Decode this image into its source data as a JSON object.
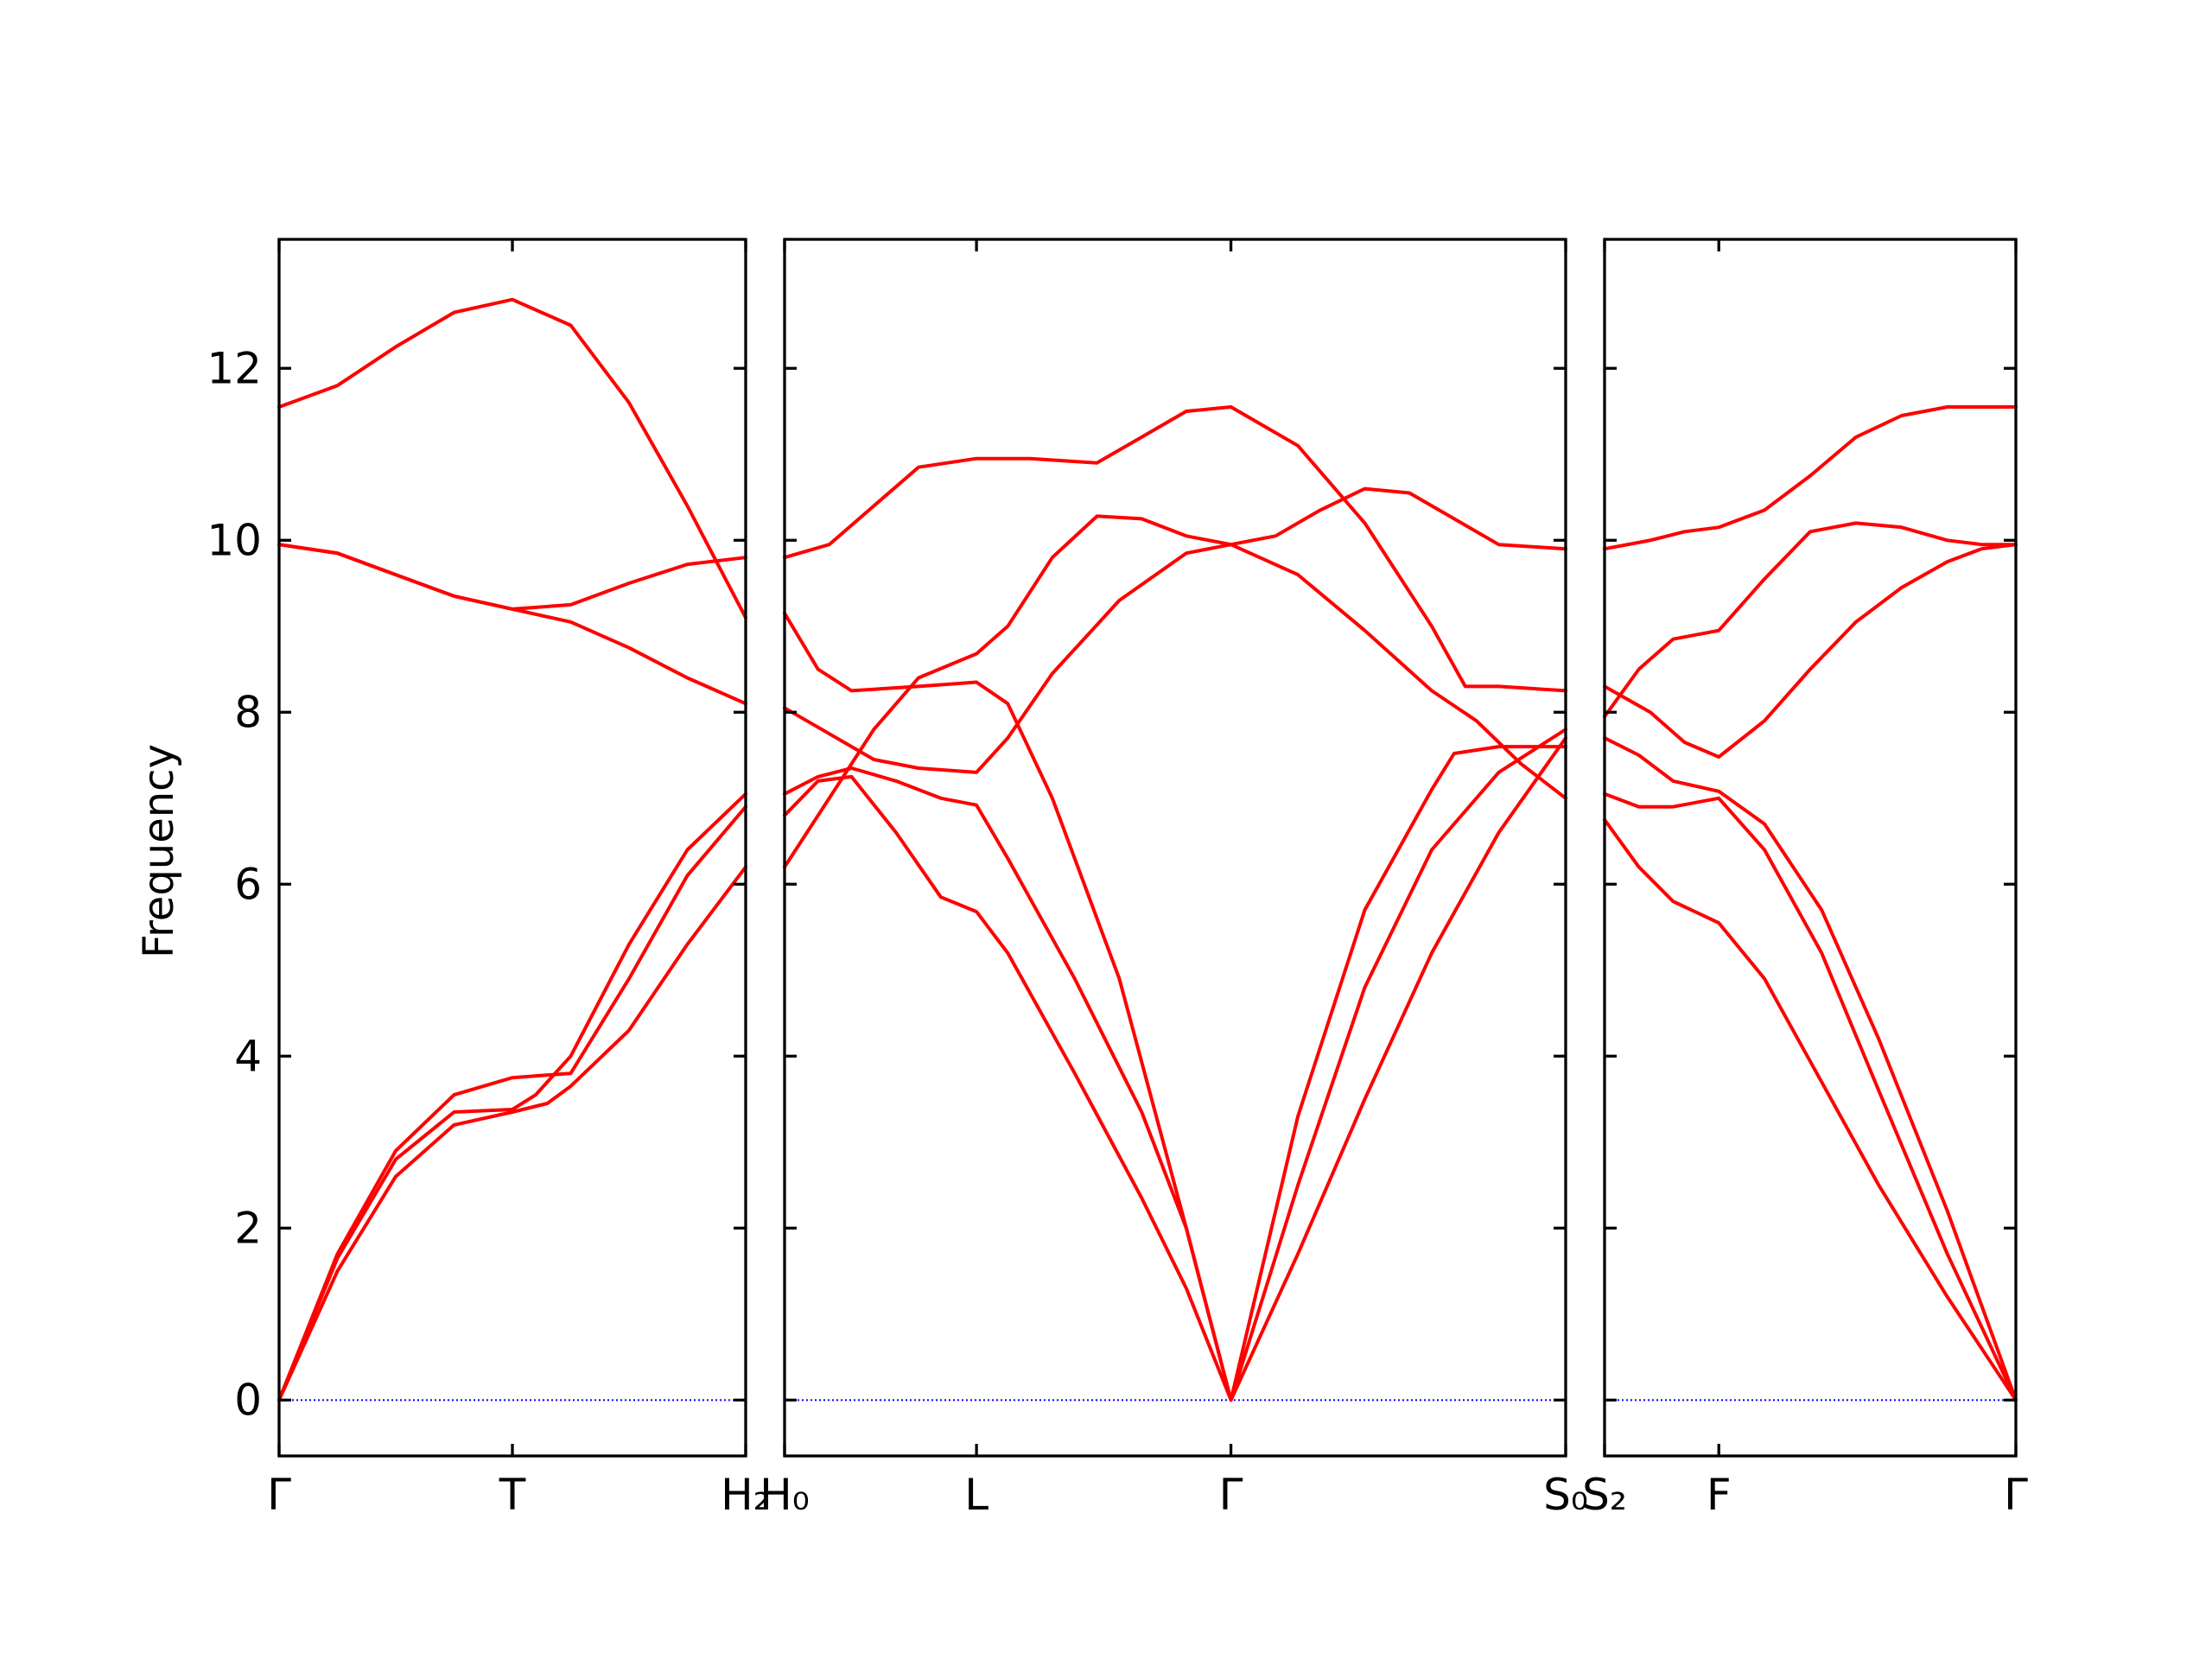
{
  "chart_data": {
    "type": "line",
    "title": "",
    "ylabel": "Frequency",
    "ylim": [
      -0.65,
      13.5
    ],
    "yticks": [
      0,
      2,
      4,
      6,
      8,
      10,
      12
    ],
    "grid": false,
    "colors": {
      "bands": "#ff0000",
      "zero_line": "#0000ff"
    },
    "panels": [
      {
        "name": "panel-1",
        "xlim": [
          0,
          2
        ],
        "xticks": [
          0,
          1,
          2
        ],
        "xticklabels": [
          "Γ",
          "T",
          "H₂"
        ],
        "series": [
          {
            "name": "band-1",
            "points": [
              [
                0,
                0
              ],
              [
                0.25,
                1.5
              ],
              [
                0.5,
                2.6
              ],
              [
                0.75,
                3.2
              ],
              [
                1,
                3.35
              ],
              [
                1.15,
                3.45
              ],
              [
                1.25,
                3.65
              ],
              [
                1.5,
                4.3
              ],
              [
                1.75,
                5.3
              ],
              [
                2,
                6.2
              ]
            ]
          },
          {
            "name": "band-2",
            "points": [
              [
                0,
                0
              ],
              [
                0.25,
                1.7
              ],
              [
                0.5,
                2.9
              ],
              [
                0.75,
                3.55
              ],
              [
                1,
                3.75
              ],
              [
                1.25,
                3.8
              ],
              [
                1.5,
                4.9
              ],
              [
                1.75,
                6.1
              ],
              [
                2,
                6.9
              ]
            ]
          },
          {
            "name": "band-3",
            "points": [
              [
                0,
                0
              ],
              [
                0.25,
                1.65
              ],
              [
                0.5,
                2.8
              ],
              [
                0.75,
                3.35
              ],
              [
                1,
                3.38
              ],
              [
                1.1,
                3.55
              ],
              [
                1.25,
                4.0
              ],
              [
                1.5,
                5.3
              ],
              [
                1.75,
                6.4
              ],
              [
                2,
                7.05
              ]
            ]
          },
          {
            "name": "band-4",
            "points": [
              [
                0,
                9.95
              ],
              [
                0.25,
                9.85
              ],
              [
                0.5,
                9.6
              ],
              [
                0.75,
                9.35
              ],
              [
                1,
                9.2
              ],
              [
                1.25,
                9.25
              ],
              [
                1.5,
                9.5
              ],
              [
                1.75,
                9.72
              ],
              [
                2,
                9.8
              ]
            ]
          },
          {
            "name": "band-5",
            "points": [
              [
                0,
                9.95
              ],
              [
                0.25,
                9.85
              ],
              [
                0.5,
                9.6
              ],
              [
                0.75,
                9.35
              ],
              [
                1,
                9.2
              ],
              [
                1.25,
                9.05
              ],
              [
                1.5,
                8.75
              ],
              [
                1.75,
                8.4
              ],
              [
                2,
                8.1
              ]
            ]
          },
          {
            "name": "band-6",
            "points": [
              [
                0,
                11.55
              ],
              [
                0.25,
                11.8
              ],
              [
                0.5,
                12.25
              ],
              [
                0.75,
                12.65
              ],
              [
                1,
                12.8
              ],
              [
                1.25,
                12.5
              ],
              [
                1.5,
                11.6
              ],
              [
                1.75,
                10.4
              ],
              [
                2,
                9.1
              ]
            ]
          }
        ]
      },
      {
        "name": "panel-2",
        "xlim": [
          0,
          3.5
        ],
        "xticks": [
          0,
          0.86,
          2,
          3.5
        ],
        "xticklabels": [
          "H₀",
          "L",
          "Γ",
          "S₀"
        ],
        "series": [
          {
            "name": "band-1",
            "points": [
              [
                0,
                6.8
              ],
              [
                0.15,
                7.2
              ],
              [
                0.3,
                7.25
              ],
              [
                0.5,
                6.6
              ],
              [
                0.7,
                5.85
              ],
              [
                0.86,
                5.68
              ],
              [
                1.0,
                5.2
              ],
              [
                1.3,
                3.8
              ],
              [
                1.6,
                2.35
              ],
              [
                1.8,
                1.3
              ],
              [
                2,
                0
              ],
              [
                2.3,
                1.7
              ],
              [
                2.6,
                3.5
              ],
              [
                2.9,
                5.2
              ],
              [
                3.2,
                6.6
              ],
              [
                3.5,
                7.7
              ]
            ]
          },
          {
            "name": "band-2",
            "points": [
              [
                0,
                7.05
              ],
              [
                0.15,
                7.25
              ],
              [
                0.3,
                7.35
              ],
              [
                0.5,
                7.2
              ],
              [
                0.7,
                7.0
              ],
              [
                0.86,
                6.92
              ],
              [
                1.0,
                6.3
              ],
              [
                1.3,
                4.9
              ],
              [
                1.6,
                3.35
              ],
              [
                1.8,
                2.0
              ],
              [
                2,
                0
              ],
              [
                2.3,
                2.5
              ],
              [
                2.6,
                4.8
              ],
              [
                2.9,
                6.4
              ],
              [
                3.2,
                7.3
              ],
              [
                3.5,
                7.8
              ]
            ]
          },
          {
            "name": "band-3",
            "points": [
              [
                0,
                6.2
              ],
              [
                0.2,
                7.0
              ],
              [
                0.4,
                7.8
              ],
              [
                0.6,
                8.4
              ],
              [
                0.86,
                8.68
              ],
              [
                1.0,
                9.0
              ],
              [
                1.2,
                9.8
              ],
              [
                1.4,
                10.28
              ],
              [
                1.6,
                10.25
              ],
              [
                1.8,
                10.05
              ],
              [
                2,
                9.95
              ],
              [
                2.2,
                10.05
              ],
              [
                2.4,
                10.35
              ],
              [
                2.6,
                10.6
              ],
              [
                2.8,
                10.55
              ],
              [
                3.0,
                10.25
              ],
              [
                3.2,
                9.95
              ],
              [
                3.5,
                9.9
              ]
            ]
          },
          {
            "name": "band-4",
            "points": [
              [
                0,
                8.05
              ],
              [
                0.2,
                7.75
              ],
              [
                0.4,
                7.45
              ],
              [
                0.6,
                7.35
              ],
              [
                0.86,
                7.3
              ],
              [
                1.0,
                7.7
              ],
              [
                1.2,
                8.45
              ],
              [
                1.5,
                9.3
              ],
              [
                1.8,
                9.85
              ],
              [
                2,
                9.95
              ],
              [
                2.3,
                9.6
              ],
              [
                2.6,
                8.95
              ],
              [
                2.9,
                8.25
              ],
              [
                3.1,
                7.9
              ],
              [
                3.3,
                7.4
              ],
              [
                3.5,
                7.0
              ]
            ]
          },
          {
            "name": "band-5",
            "points": [
              [
                0,
                9.15
              ],
              [
                0.15,
                8.5
              ],
              [
                0.3,
                8.25
              ],
              [
                0.6,
                8.3
              ],
              [
                0.86,
                8.35
              ],
              [
                1.0,
                8.1
              ],
              [
                1.2,
                7.0
              ],
              [
                1.5,
                4.9
              ],
              [
                1.8,
                2.0
              ],
              [
                2,
                0
              ],
              [
                2.3,
                3.3
              ],
              [
                2.6,
                5.7
              ],
              [
                2.9,
                7.1
              ],
              [
                3.0,
                7.52
              ],
              [
                3.2,
                7.6
              ],
              [
                3.5,
                7.6
              ]
            ]
          },
          {
            "name": "band-6",
            "points": [
              [
                0,
                9.8
              ],
              [
                0.2,
                9.95
              ],
              [
                0.4,
                10.4
              ],
              [
                0.6,
                10.85
              ],
              [
                0.86,
                10.95
              ],
              [
                1.1,
                10.95
              ],
              [
                1.4,
                10.9
              ],
              [
                1.6,
                11.2
              ],
              [
                1.8,
                11.5
              ],
              [
                2,
                11.55
              ],
              [
                2.3,
                11.1
              ],
              [
                2.6,
                10.2
              ],
              [
                2.9,
                9.0
              ],
              [
                3.05,
                8.3
              ],
              [
                3.2,
                8.3
              ],
              [
                3.5,
                8.25
              ]
            ]
          }
        ]
      },
      {
        "name": "panel-3",
        "xlim": [
          0,
          1.8
        ],
        "xticks": [
          0,
          0.5,
          1.8
        ],
        "xticklabels": [
          "S₂",
          "F",
          "Γ"
        ],
        "series": [
          {
            "name": "band-1",
            "points": [
              [
                0,
                6.75
              ],
              [
                0.15,
                6.2
              ],
              [
                0.3,
                5.8
              ],
              [
                0.5,
                5.55
              ],
              [
                0.7,
                4.9
              ],
              [
                0.95,
                3.7
              ],
              [
                1.2,
                2.5
              ],
              [
                1.5,
                1.2
              ],
              [
                1.8,
                0
              ]
            ]
          },
          {
            "name": "band-2",
            "points": [
              [
                0,
                7.05
              ],
              [
                0.15,
                6.9
              ],
              [
                0.3,
                6.9
              ],
              [
                0.5,
                7.0
              ],
              [
                0.7,
                6.4
              ],
              [
                0.95,
                5.2
              ],
              [
                1.2,
                3.6
              ],
              [
                1.5,
                1.7
              ],
              [
                1.8,
                0
              ]
            ]
          },
          {
            "name": "band-3",
            "points": [
              [
                0,
                7.7
              ],
              [
                0.15,
                7.5
              ],
              [
                0.3,
                7.2
              ],
              [
                0.5,
                7.08
              ],
              [
                0.7,
                6.7
              ],
              [
                0.95,
                5.7
              ],
              [
                1.2,
                4.2
              ],
              [
                1.5,
                2.2
              ],
              [
                1.8,
                0
              ]
            ]
          },
          {
            "name": "band-4",
            "points": [
              [
                0,
                8.3
              ],
              [
                0.2,
                8.0
              ],
              [
                0.35,
                7.65
              ],
              [
                0.5,
                7.48
              ],
              [
                0.7,
                7.9
              ],
              [
                0.9,
                8.5
              ],
              [
                1.1,
                9.05
              ],
              [
                1.3,
                9.45
              ],
              [
                1.5,
                9.75
              ],
              [
                1.65,
                9.9
              ],
              [
                1.8,
                9.95
              ]
            ]
          },
          {
            "name": "band-5",
            "points": [
              [
                0,
                7.95
              ],
              [
                0.15,
                8.5
              ],
              [
                0.3,
                8.85
              ],
              [
                0.5,
                8.95
              ],
              [
                0.7,
                9.55
              ],
              [
                0.9,
                10.1
              ],
              [
                1.1,
                10.2
              ],
              [
                1.3,
                10.15
              ],
              [
                1.5,
                10.0
              ],
              [
                1.65,
                9.95
              ],
              [
                1.8,
                9.95
              ]
            ]
          },
          {
            "name": "band-6",
            "points": [
              [
                0,
                9.9
              ],
              [
                0.2,
                10.0
              ],
              [
                0.35,
                10.1
              ],
              [
                0.5,
                10.15
              ],
              [
                0.7,
                10.35
              ],
              [
                0.9,
                10.75
              ],
              [
                1.1,
                11.2
              ],
              [
                1.3,
                11.45
              ],
              [
                1.5,
                11.55
              ],
              [
                1.8,
                11.55
              ]
            ]
          }
        ]
      }
    ]
  }
}
